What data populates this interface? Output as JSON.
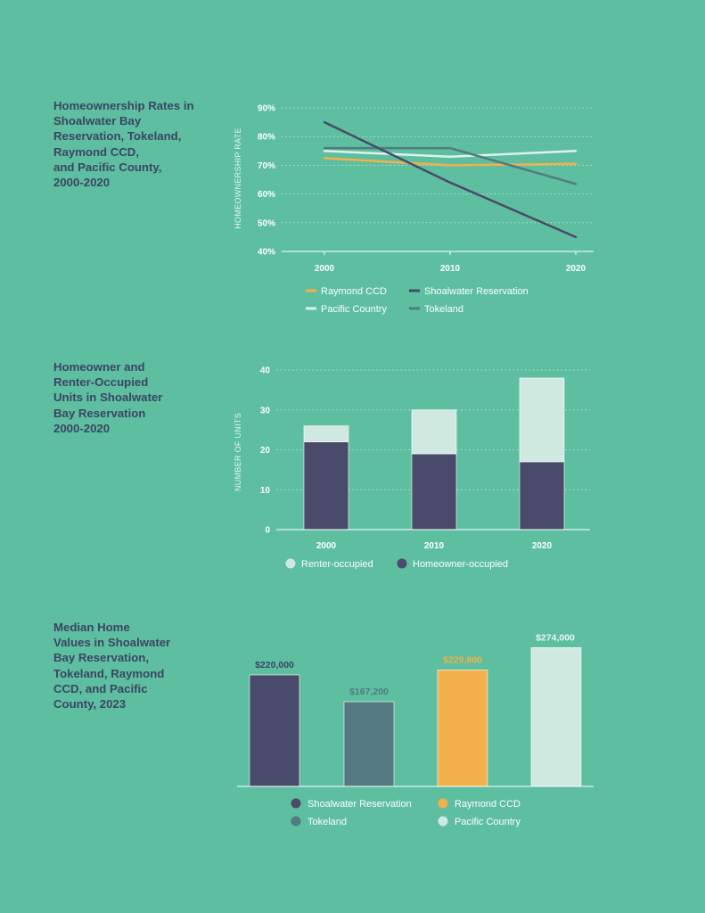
{
  "colors": {
    "background": "#5dbfa0",
    "title_text": "#3b4463",
    "shoalwater": "#4a4a6a",
    "raymond": "#f4b04a",
    "pacific": "#cfe9e1",
    "tokeland": "#527a80",
    "renter": "#cfe9e1",
    "homeowner": "#4a4a6a"
  },
  "sections": {
    "rates_title": "Homeownership Rates in\nShoalwater Bay\nReservation, Tokeland,\nRaymond CCD,\nand Pacific County,\n2000-2020",
    "units_title": "Homeowner and\nRenter-Occupied\nUnits in Shoalwater\nBay Reservation\n2000-2020",
    "values_title": "Median Home\nValues in Shoalwater\nBay Reservation,\nTokeland, Raymond\nCCD, and Pacific\nCounty, 2023"
  },
  "chart_data": [
    {
      "type": "line",
      "ylabel": "HOMEOWNERSHIP RATE",
      "x": [
        "2000",
        "2010",
        "2020"
      ],
      "ylim": [
        40,
        90
      ],
      "yticks": [
        "40%",
        "50%",
        "60%",
        "70%",
        "80%",
        "90%"
      ],
      "grid": true,
      "legend_position": "bottom",
      "series": [
        {
          "name": "Raymond CCD",
          "values": [
            72.5,
            70,
            70.5
          ],
          "color": "#f4b04a"
        },
        {
          "name": "Shoalwater Reservation",
          "values": [
            85,
            64,
            45
          ],
          "color": "#4a4a6a"
        },
        {
          "name": "Pacific Country",
          "values": [
            75,
            73,
            75
          ],
          "color": "#dff2ec"
        },
        {
          "name": "Tokeland",
          "values": [
            76,
            76,
            63.5
          ],
          "color": "#527a80"
        }
      ]
    },
    {
      "type": "bar",
      "stacked": true,
      "ylabel": "NUMBER OF UNITS",
      "categories": [
        "2000",
        "2010",
        "2020"
      ],
      "ylim": [
        0,
        40
      ],
      "yticks": [
        "0",
        "10",
        "20",
        "30",
        "40"
      ],
      "grid": true,
      "legend_position": "bottom",
      "series": [
        {
          "name": "Homeowner-occupied",
          "values": [
            22,
            19,
            17
          ],
          "color": "#4a4a6a"
        },
        {
          "name": "Renter-occupied",
          "values": [
            4,
            11,
            21
          ],
          "color": "#cfe9e1"
        }
      ],
      "legend_order": [
        "Renter-occupied",
        "Homeowner-occupied"
      ]
    },
    {
      "type": "bar",
      "categories": [
        "Shoalwater Reservation",
        "Tokeland",
        "Raymond CCD",
        "Pacific Country"
      ],
      "values": [
        220000,
        167200,
        229800,
        274000
      ],
      "labels": [
        "$220,000",
        "$167,200",
        "$229,800",
        "$274,000"
      ],
      "colors": [
        "#4a4a6a",
        "#527a80",
        "#f4b04a",
        "#cfe9e1"
      ],
      "label_colors": [
        "#3b4463",
        "#527a80",
        "#f4b04a",
        "#e8f6f1"
      ],
      "ylim": [
        0,
        300000
      ],
      "legend_position": "bottom"
    }
  ]
}
